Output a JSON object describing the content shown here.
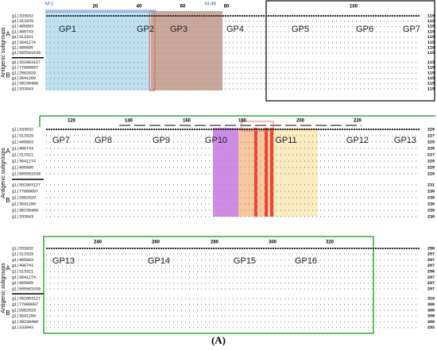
{
  "figure_label": "(A)",
  "axis_label": "Antigenic subgroups",
  "subgroups": [
    "A",
    "B"
  ],
  "markers": [
    "M-1",
    "M-48"
  ],
  "panels": [
    {
      "ruler": [
        "20",
        "40",
        "60",
        "80",
        "100"
      ],
      "ids": [
        "gi|333932",
        "gi|313329",
        "gi|405893",
        "gi|406743",
        "gi|313321",
        "gi|3641274",
        "gi|405895",
        "gi|505581639",
        "gi|352963127",
        "gi|77999097",
        "gi|2582029",
        "gi|3641260",
        "gi|38230489",
        "gi|333943"
      ],
      "ends": [
        "115",
        "115",
        "115",
        "115",
        "115",
        "115",
        "115",
        "115",
        "115",
        "115",
        "115",
        "115",
        "115",
        "115"
      ],
      "gp": [
        "GP1",
        "GP2",
        "GP3",
        "GP4",
        "GP5",
        "GP6",
        "GP7"
      ]
    },
    {
      "ruler": [
        "120",
        "140",
        "160",
        "180",
        "200",
        "220"
      ],
      "ids": [
        "gi|333932",
        "gi|313329",
        "gi|405893",
        "gi|406743",
        "gi|313321",
        "gi|3641274",
        "gi|405895",
        "gi|505581639",
        "gi|352963127",
        "gi|77999097",
        "gi|2582029",
        "gi|3641260",
        "gi|38230489",
        "gi|333943"
      ],
      "ends": [
        "229",
        "227",
        "229",
        "229",
        "227",
        "229",
        "229",
        "229",
        "231",
        "230",
        "230",
        "230",
        "230",
        "230"
      ],
      "gp": [
        "GP7",
        "GP8",
        "GP9",
        "GP10",
        "GP11",
        "GP12",
        "GP13"
      ]
    },
    {
      "ruler": [
        "240",
        "260",
        "280",
        "300",
        "320"
      ],
      "ids": [
        "gi|333932",
        "gi|313329",
        "gi|405893",
        "gi|406743",
        "gi|313321",
        "gi|3641274",
        "gi|405895",
        "gi|505581639",
        "gi|352963127",
        "gi|77999097",
        "gi|2582029",
        "gi|3641260",
        "gi|38230489",
        "gi|333943"
      ],
      "ends": [
        "298",
        "297",
        "297",
        "297",
        "296",
        "297",
        "297",
        "297",
        "310",
        "300",
        "300",
        "308",
        "300",
        "292"
      ],
      "gp": [
        "GP13",
        "GP14",
        "GP15",
        "GP16"
      ]
    }
  ]
}
